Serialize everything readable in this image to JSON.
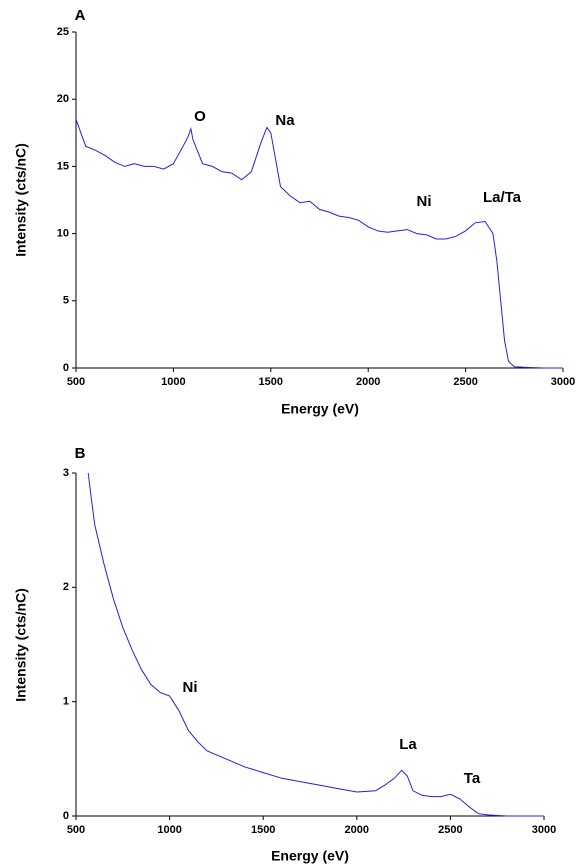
{
  "chart_data": [
    {
      "type": "line",
      "panel_label": "A",
      "xlabel": "Energy (eV)",
      "ylabel": "Intensity (cts/nC)",
      "annotations": [
        "O",
        "Na",
        "Ni",
        "La/Ta"
      ],
      "color": "#2222dd",
      "xlim": [
        500,
        3000
      ],
      "xticks": [
        500,
        1000,
        1500,
        2000,
        2500,
        3000
      ],
      "ylim": [
        0,
        25
      ],
      "yticks": [
        0,
        5,
        10,
        15,
        20,
        25
      ],
      "x": [
        500,
        550,
        600,
        650,
        700,
        750,
        800,
        850,
        900,
        950,
        1000,
        1050,
        1075,
        1090,
        1100,
        1150,
        1200,
        1250,
        1300,
        1350,
        1400,
        1450,
        1480,
        1500,
        1550,
        1600,
        1650,
        1700,
        1750,
        1800,
        1850,
        1900,
        1950,
        2000,
        2050,
        2100,
        2150,
        2200,
        2250,
        2300,
        2350,
        2400,
        2450,
        2500,
        2550,
        2600,
        2640,
        2660,
        2680,
        2700,
        2720,
        2750,
        2800,
        2900,
        3000
      ],
      "values": [
        18.5,
        16.5,
        16.2,
        15.8,
        15.3,
        15.0,
        15.2,
        15.0,
        15.0,
        14.8,
        15.2,
        16.5,
        17.2,
        17.8,
        17.0,
        15.2,
        15.0,
        14.6,
        14.5,
        14.0,
        14.6,
        16.8,
        17.9,
        17.5,
        13.5,
        12.8,
        12.3,
        12.4,
        11.8,
        11.6,
        11.3,
        11.2,
        11.0,
        10.5,
        10.2,
        10.1,
        10.2,
        10.3,
        10.0,
        9.9,
        9.6,
        9.6,
        9.8,
        10.2,
        10.8,
        10.9,
        10.0,
        8.0,
        5.0,
        2.0,
        0.5,
        0.1,
        0.05,
        0,
        0
      ]
    },
    {
      "type": "line",
      "panel_label": "B",
      "xlabel": "Energy (eV)",
      "ylabel": "Intensity (cts/nC)",
      "annotations": [
        "Ni",
        "La",
        "Ta"
      ],
      "color": "#2222dd",
      "xlim": [
        500,
        3000
      ],
      "xticks": [
        500,
        1000,
        1500,
        2000,
        2500,
        3000
      ],
      "ylim": [
        0,
        3
      ],
      "yticks": [
        0,
        1,
        2,
        3
      ],
      "x": [
        565,
        580,
        600,
        650,
        700,
        750,
        800,
        850,
        900,
        950,
        1000,
        1050,
        1100,
        1150,
        1200,
        1300,
        1400,
        1500,
        1600,
        1700,
        1800,
        1900,
        2000,
        2100,
        2150,
        2200,
        2240,
        2270,
        2300,
        2350,
        2400,
        2450,
        2500,
        2550,
        2600,
        2650,
        2700,
        2800,
        3000
      ],
      "values": [
        3.0,
        2.8,
        2.55,
        2.2,
        1.9,
        1.65,
        1.45,
        1.28,
        1.15,
        1.08,
        1.05,
        0.92,
        0.75,
        0.65,
        0.57,
        0.5,
        0.43,
        0.38,
        0.33,
        0.3,
        0.27,
        0.24,
        0.21,
        0.22,
        0.27,
        0.33,
        0.4,
        0.35,
        0.22,
        0.18,
        0.17,
        0.17,
        0.19,
        0.15,
        0.08,
        0.02,
        0.01,
        0,
        0
      ]
    }
  ]
}
